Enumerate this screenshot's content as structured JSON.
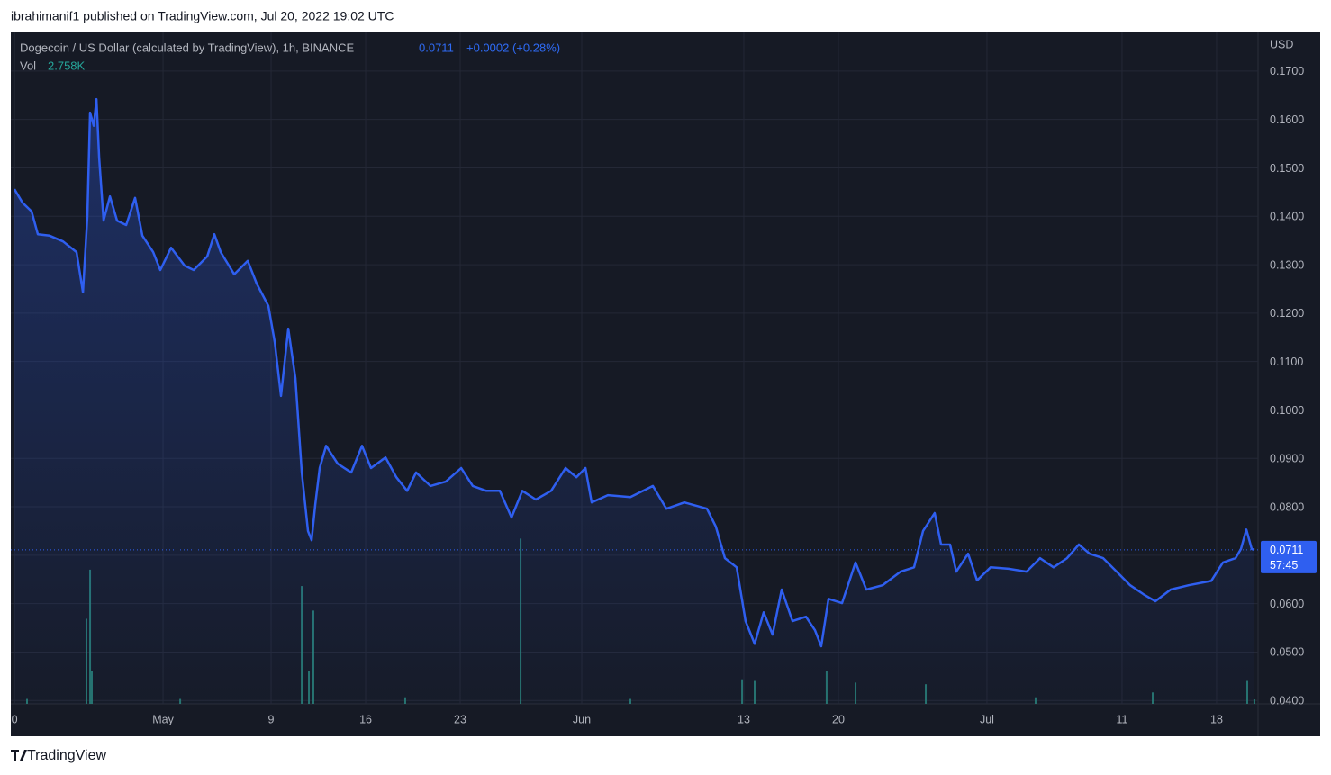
{
  "header": {
    "publisher": "ibrahimanif1 published on TradingView.com, Jul 20, 2022 19:02 UTC"
  },
  "footer": {
    "logo": "TradingView"
  },
  "chart_data": {
    "type": "line",
    "change": "+0.0002 (+0.28%)",
    "countdown": "57:45",
    "currency": "USD",
    "vol_label": "Vol",
    "vol_value": "2.758K",
    "xlim": [
      -0.27,
      92.07
    ],
    "ylim": [
      0.0393,
      0.1776
    ],
    "xticks": [
      {
        "value": 0,
        "label": "0"
      },
      {
        "value": 11,
        "label": "May"
      },
      {
        "value": 19,
        "label": "9"
      },
      {
        "value": 26,
        "label": "16"
      },
      {
        "value": 33,
        "label": "23"
      },
      {
        "value": 42,
        "label": "Jun"
      },
      {
        "value": 54,
        "label": "13"
      },
      {
        "value": 61,
        "label": "20"
      },
      {
        "value": 72,
        "label": "Jul"
      },
      {
        "value": 82,
        "label": "11"
      },
      {
        "value": 89,
        "label": "18"
      }
    ],
    "yticks": [
      {
        "value": 0.04,
        "label": "0.0400"
      },
      {
        "value": 0.05,
        "label": "0.0500"
      },
      {
        "value": 0.06,
        "label": "0.0600"
      },
      {
        "value": 0.07,
        "label": "0.0700"
      },
      {
        "value": 0.08,
        "label": "0.0800"
      },
      {
        "value": 0.09,
        "label": "0.0900"
      },
      {
        "value": 0.1,
        "label": "0.1000"
      },
      {
        "value": 0.11,
        "label": "0.1100"
      },
      {
        "value": 0.12,
        "label": "0.1200"
      },
      {
        "value": 0.13,
        "label": "0.1300"
      },
      {
        "value": 0.14,
        "label": "0.1400"
      },
      {
        "value": 0.15,
        "label": "0.1500"
      },
      {
        "value": 0.16,
        "label": "0.1600"
      },
      {
        "value": 0.17,
        "label": "0.1700"
      }
    ],
    "grid": true,
    "series": [
      {
        "name": "Dogecoin / US Dollar (calculated by TradingView), 1h, BINANCE",
        "color": "#2f5ff0",
        "x": [
          0,
          0.6,
          1.27,
          1.73,
          2.6,
          3.6,
          4.6,
          5.07,
          5.4,
          5.6,
          5.87,
          6.07,
          6.27,
          6.6,
          7.07,
          7.6,
          8.27,
          8.93,
          9.47,
          10.27,
          10.8,
          11.6,
          12.6,
          13.27,
          14.27,
          14.8,
          15.27,
          16.27,
          17.27,
          17.93,
          18.8,
          19.27,
          19.73,
          20.27,
          20.8,
          21.27,
          21.73,
          22,
          22.27,
          22.6,
          23.07,
          23.93,
          24.93,
          25.73,
          26.4,
          27.47,
          28.27,
          29.07,
          29.73,
          30.8,
          31.93,
          33.07,
          33.93,
          34.93,
          35.93,
          36.8,
          37.6,
          38.6,
          39.73,
          40.8,
          41.6,
          42.27,
          42.73,
          43.93,
          45.6,
          47.27,
          48.27,
          49.6,
          51.27,
          51.93,
          52.6,
          53.47,
          54.13,
          54.8,
          55.47,
          56.13,
          56.8,
          57.6,
          58.6,
          59.27,
          59.73,
          60.27,
          61.27,
          62.27,
          63.07,
          64.27,
          65.6,
          66.6,
          67.27,
          68.13,
          68.6,
          69.27,
          69.73,
          70.6,
          71.27,
          72.27,
          73.6,
          74.93,
          75.93,
          76.93,
          77.93,
          78.8,
          79.6,
          80.6,
          81.6,
          82.6,
          83.6,
          84.47,
          85.6,
          86.93,
          88.6,
          89.47,
          90.4,
          90.8,
          91.2,
          91.6,
          91.8
        ],
        "values": [
          0.1456,
          0.1428,
          0.141,
          0.1363,
          0.136,
          0.1348,
          0.1326,
          0.1243,
          0.14,
          0.1614,
          0.1587,
          0.1642,
          0.1521,
          0.1391,
          0.1441,
          0.1391,
          0.1382,
          0.1438,
          0.136,
          0.1326,
          0.1289,
          0.1335,
          0.1298,
          0.1289,
          0.1317,
          0.1363,
          0.1326,
          0.128,
          0.1308,
          0.1261,
          0.1215,
          0.114,
          0.1029,
          0.1168,
          0.1066,
          0.0871,
          0.075,
          0.0731,
          0.0805,
          0.088,
          0.0926,
          0.0889,
          0.0871,
          0.0926,
          0.088,
          0.0902,
          0.0861,
          0.0833,
          0.0871,
          0.0843,
          0.0852,
          0.088,
          0.0843,
          0.0833,
          0.0833,
          0.0778,
          0.0833,
          0.0815,
          0.0833,
          0.088,
          0.0861,
          0.088,
          0.0809,
          0.0824,
          0.082,
          0.0843,
          0.0796,
          0.0809,
          0.0796,
          0.0759,
          0.0694,
          0.0675,
          0.0564,
          0.0517,
          0.0582,
          0.0536,
          0.0629,
          0.0564,
          0.0573,
          0.0545,
          0.0512,
          0.061,
          0.0601,
          0.0685,
          0.0629,
          0.0638,
          0.0666,
          0.0675,
          0.075,
          0.0787,
          0.0722,
          0.0722,
          0.0666,
          0.0703,
          0.0648,
          0.0675,
          0.0672,
          0.0666,
          0.0694,
          0.0675,
          0.0694,
          0.0722,
          0.0703,
          0.0694,
          0.0666,
          0.0638,
          0.0619,
          0.0605,
          0.0629,
          0.0638,
          0.0647,
          0.0685,
          0.0694,
          0.0713,
          0.0753,
          0.0713,
          0.0711
        ]
      }
    ],
    "volume": {
      "color": "#2a8a80",
      "ylim": [
        0,
        110
      ],
      "x": [
        0.93,
        5.33,
        5.6,
        5.73,
        12.27,
        21.27,
        21.8,
        22.13,
        28.93,
        37.47,
        45.6,
        53.87,
        54.8,
        60.13,
        62.27,
        67.47,
        75.6,
        84.27,
        91.27,
        91.8
      ],
      "values": [
        3,
        52,
        82,
        20,
        3,
        72,
        20,
        57,
        4,
        101,
        3,
        15,
        14,
        20,
        13,
        12,
        4,
        7,
        14,
        2.758
      ]
    }
  }
}
